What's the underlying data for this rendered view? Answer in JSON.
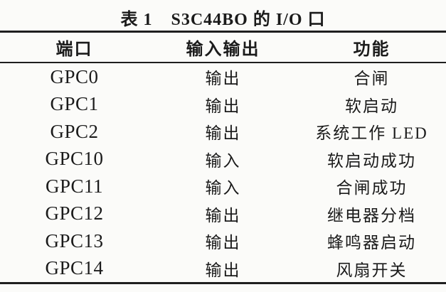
{
  "caption": {
    "number": "表 1",
    "title": "S3C44BO 的 I/O 口"
  },
  "table": {
    "columns": {
      "port": "端口",
      "io": "输入输出",
      "function": "功能"
    },
    "rows": [
      {
        "port": "GPC0",
        "io": "输出",
        "function": "合闸"
      },
      {
        "port": "GPC1",
        "io": "输出",
        "function": "软启动"
      },
      {
        "port": "GPC2",
        "io": "输出",
        "function": "系统工作 LED"
      },
      {
        "port": "GPC10",
        "io": "输入",
        "function": "软启动成功"
      },
      {
        "port": "GPC11",
        "io": "输入",
        "function": "合闸成功"
      },
      {
        "port": "GPC12",
        "io": "输出",
        "function": "继电器分档"
      },
      {
        "port": "GPC13",
        "io": "输出",
        "function": "蜂鸣器启动"
      },
      {
        "port": "GPC14",
        "io": "输出",
        "function": "风扇开关"
      }
    ]
  },
  "colors": {
    "background": "#fbfbf9",
    "text": "#1b1b1b",
    "rule": "#1f1f1f"
  }
}
